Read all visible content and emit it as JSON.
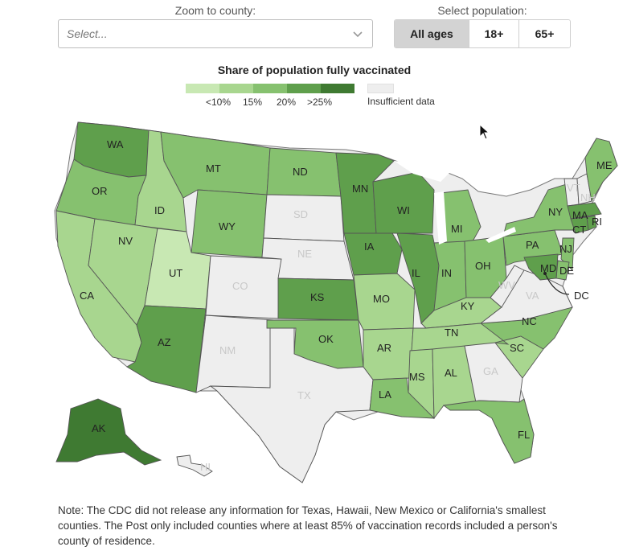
{
  "controls": {
    "zoom_label": "Zoom to county:",
    "zoom_placeholder": "Select...",
    "population_label": "Select population:",
    "population_options": [
      "All ages",
      "18+",
      "65+"
    ],
    "population_selected": "All ages"
  },
  "legend": {
    "title": "Share of population fully vaccinated",
    "colors": [
      "#c8e8b3",
      "#a8d68f",
      "#86c16f",
      "#5f9f4c",
      "#3f7a32"
    ],
    "ticks": [
      "<10%",
      "15%",
      "20%",
      ">25%"
    ],
    "no_data_label": "Insufficient data",
    "no_data_color": "#eeeeee"
  },
  "states": [
    {
      "abbr": "WA",
      "bin": 3
    },
    {
      "abbr": "OR",
      "bin": 2
    },
    {
      "abbr": "CA",
      "bin": 1
    },
    {
      "abbr": "ID",
      "bin": 1
    },
    {
      "abbr": "NV",
      "bin": 1
    },
    {
      "abbr": "MT",
      "bin": 2
    },
    {
      "abbr": "WY",
      "bin": 2
    },
    {
      "abbr": "UT",
      "bin": 0
    },
    {
      "abbr": "AZ",
      "bin": 3
    },
    {
      "abbr": "CO",
      "bin": -1
    },
    {
      "abbr": "NM",
      "bin": -1
    },
    {
      "abbr": "ND",
      "bin": 2
    },
    {
      "abbr": "SD",
      "bin": -1
    },
    {
      "abbr": "NE",
      "bin": -1
    },
    {
      "abbr": "KS",
      "bin": 3
    },
    {
      "abbr": "OK",
      "bin": 2
    },
    {
      "abbr": "TX",
      "bin": -1
    },
    {
      "abbr": "MN",
      "bin": 3
    },
    {
      "abbr": "IA",
      "bin": 3
    },
    {
      "abbr": "MO",
      "bin": 1
    },
    {
      "abbr": "AR",
      "bin": 1
    },
    {
      "abbr": "LA",
      "bin": 2
    },
    {
      "abbr": "WI",
      "bin": 3
    },
    {
      "abbr": "IL",
      "bin": 3
    },
    {
      "abbr": "MS",
      "bin": 1
    },
    {
      "abbr": "MI",
      "bin": 2
    },
    {
      "abbr": "IN",
      "bin": 2
    },
    {
      "abbr": "KY",
      "bin": 1
    },
    {
      "abbr": "TN",
      "bin": 1
    },
    {
      "abbr": "AL",
      "bin": 1
    },
    {
      "abbr": "GA",
      "bin": -1
    },
    {
      "abbr": "FL",
      "bin": 2
    },
    {
      "abbr": "OH",
      "bin": 2
    },
    {
      "abbr": "WV",
      "bin": -1
    },
    {
      "abbr": "VA",
      "bin": -1
    },
    {
      "abbr": "NC",
      "bin": 2
    },
    {
      "abbr": "SC",
      "bin": 1
    },
    {
      "abbr": "PA",
      "bin": 2
    },
    {
      "abbr": "NY",
      "bin": 2
    },
    {
      "abbr": "VT",
      "bin": -1
    },
    {
      "abbr": "NH",
      "bin": -1
    },
    {
      "abbr": "ME",
      "bin": 2
    },
    {
      "abbr": "MA",
      "bin": 3
    },
    {
      "abbr": "CT",
      "bin": 3
    },
    {
      "abbr": "RI",
      "bin": 3
    },
    {
      "abbr": "NJ",
      "bin": 2
    },
    {
      "abbr": "DE",
      "bin": 2
    },
    {
      "abbr": "MD",
      "bin": 3
    },
    {
      "abbr": "DC",
      "bin": 3
    },
    {
      "abbr": "AK",
      "bin": 4
    },
    {
      "abbr": "HI",
      "bin": -1
    }
  ],
  "note": "Note: The CDC did not release any information for Texas, Hawaii, New Mexico or California's smallest counties. The Post only included counties where at least 85% of vaccination records included a person's county of residence."
}
